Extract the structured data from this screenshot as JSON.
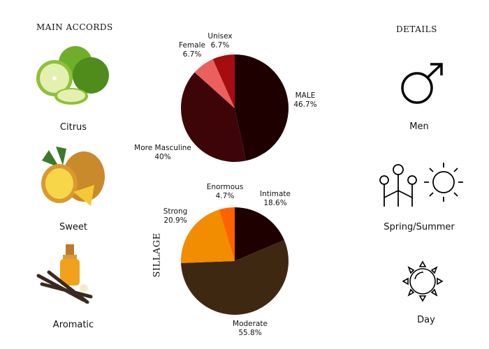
{
  "main_accords": {
    "title": "MAIN ACCORDS",
    "items": [
      {
        "label": "Citrus",
        "icon": "citrus-fruit-image"
      },
      {
        "label": "Sweet",
        "icon": "pineapple-image"
      },
      {
        "label": "Aromatic",
        "icon": "vanilla-oil-image"
      }
    ]
  },
  "details": {
    "title": "DETAILS",
    "items": [
      {
        "label": "Men",
        "icon": "male-symbol-icon"
      },
      {
        "label": "Spring/Summer",
        "icon": "flowers-sun-icon"
      },
      {
        "label": "Day",
        "icon": "sun-icon"
      }
    ]
  },
  "chart_data": [
    {
      "type": "pie",
      "title": "",
      "labels": [
        "MALE",
        "More Masculine",
        "Female",
        "Unisex"
      ],
      "values": [
        46.7,
        40,
        6.7,
        6.7
      ],
      "value_labels": [
        "46.7%",
        "40%",
        "6.7%",
        "6.7%"
      ],
      "colors": [
        "#1e0000",
        "#3d0507",
        "#ec5f5f",
        "#a50d10"
      ],
      "start": "top",
      "direction": "clockwise"
    },
    {
      "type": "pie",
      "title": "SILLAGE",
      "labels": [
        "Intimate",
        "Moderate",
        "Strong",
        "Enormous"
      ],
      "values": [
        18.6,
        55.8,
        20.9,
        4.7
      ],
      "value_labels": [
        "18.6%",
        "55.8%",
        "20.9%",
        "4.7%"
      ],
      "colors": [
        "#1e0000",
        "#3f2812",
        "#f28c00",
        "#ff6200"
      ],
      "start": "top",
      "direction": "clockwise"
    }
  ]
}
